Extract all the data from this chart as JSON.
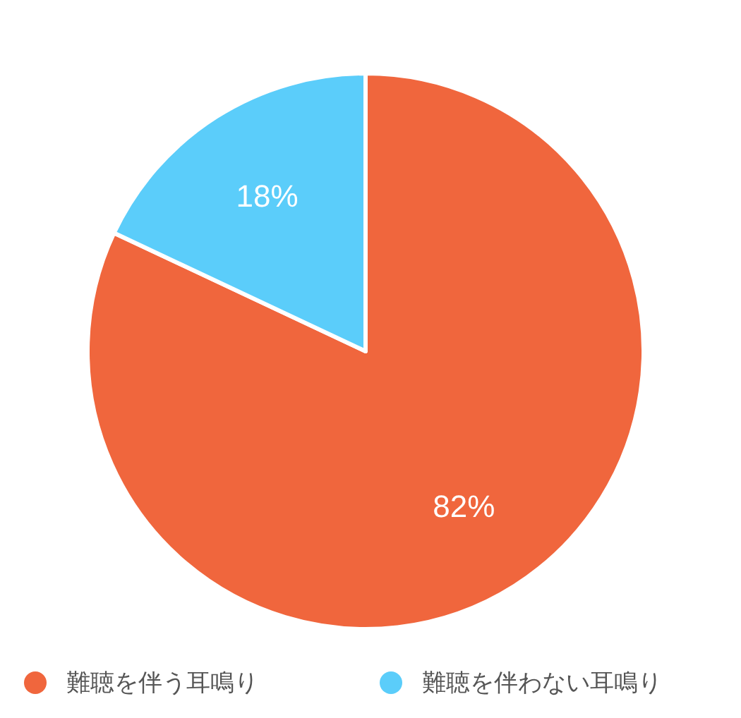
{
  "chart_data": {
    "type": "pie",
    "categories": [
      "難聴を伴う耳鳴り",
      "難聴を伴わない耳鳴り"
    ],
    "values": [
      82,
      18
    ],
    "colors": [
      "#f0663d",
      "#5bcdfa"
    ],
    "value_labels": [
      "82%",
      "18%"
    ],
    "legend": "bottom"
  }
}
